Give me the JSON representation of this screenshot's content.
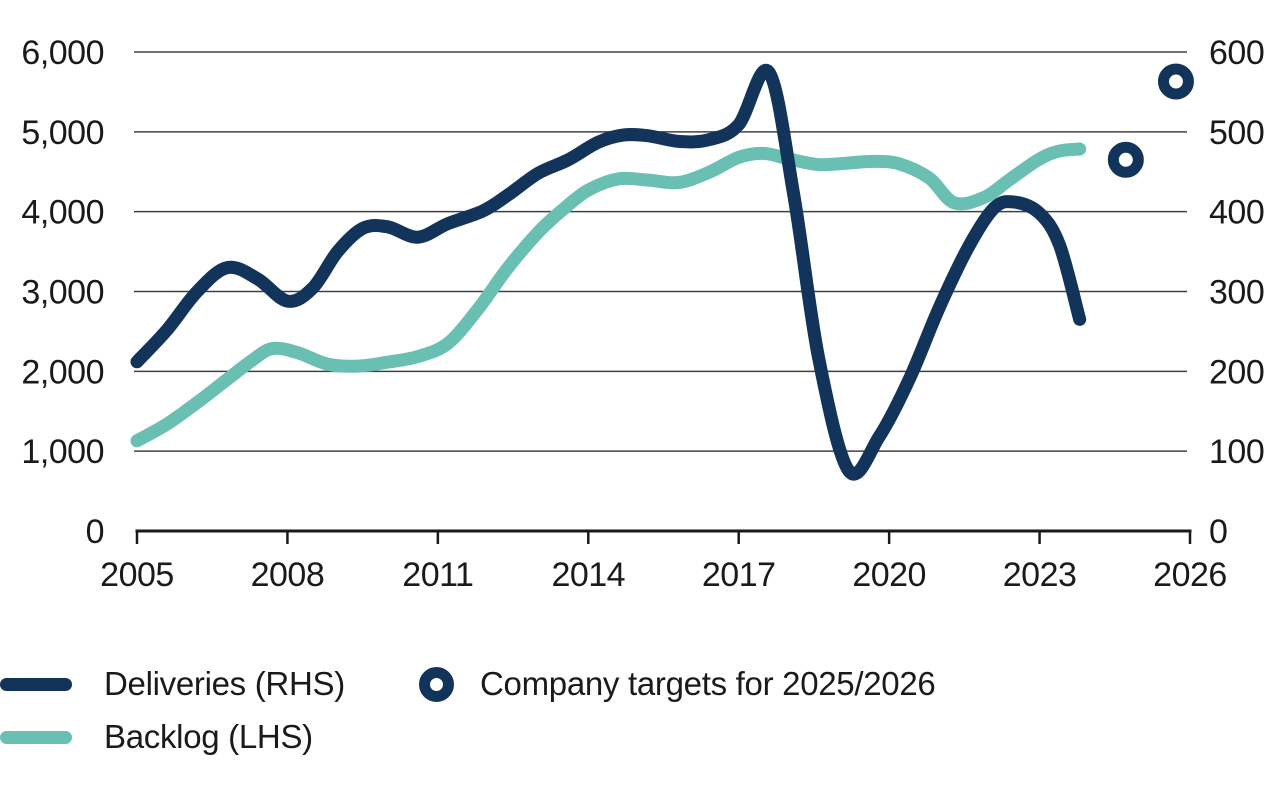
{
  "chart_data": {
    "type": "line",
    "title": "",
    "grid": true,
    "legend_position": "bottom-left",
    "x_axis": {
      "tick_years": [
        2005,
        2008,
        2011,
        2014,
        2017,
        2020,
        2023,
        2026
      ],
      "range": [
        2005,
        2026
      ]
    },
    "left_axis": {
      "range": [
        0,
        6000
      ],
      "ticks": [
        {
          "label": "6,000",
          "value": 6000
        },
        {
          "label": "5,000",
          "value": 5000
        },
        {
          "label": "4,000",
          "value": 4000
        },
        {
          "label": "3,000",
          "value": 3000
        },
        {
          "label": "2,000",
          "value": 2000
        },
        {
          "label": "1,000",
          "value": 1000
        },
        {
          "label": "0",
          "value": 0
        }
      ]
    },
    "right_axis": {
      "range": [
        0,
        600
      ],
      "ticks": [
        {
          "label": "600",
          "value": 600
        },
        {
          "label": "500",
          "value": 500
        },
        {
          "label": "400",
          "value": 400
        },
        {
          "label": "300",
          "value": 300
        },
        {
          "label": "200",
          "value": 200
        },
        {
          "label": "100",
          "value": 100
        },
        {
          "label": "0",
          "value": 0
        }
      ]
    },
    "series": [
      {
        "name": "Deliveries (RHS)",
        "axis": "right",
        "color": "#12335a",
        "points": [
          [
            2005.0,
            212
          ],
          [
            2005.6,
            252
          ],
          [
            2006.2,
            300
          ],
          [
            2006.8,
            330
          ],
          [
            2007.4,
            316
          ],
          [
            2008.0,
            288
          ],
          [
            2008.5,
            304
          ],
          [
            2009.0,
            350
          ],
          [
            2009.5,
            379
          ],
          [
            2010.0,
            381
          ],
          [
            2010.6,
            368
          ],
          [
            2011.2,
            385
          ],
          [
            2011.9,
            401
          ],
          [
            2012.4,
            421
          ],
          [
            2013.0,
            448
          ],
          [
            2013.6,
            465
          ],
          [
            2014.2,
            487
          ],
          [
            2014.7,
            496
          ],
          [
            2015.2,
            495
          ],
          [
            2015.8,
            488
          ],
          [
            2016.4,
            490
          ],
          [
            2017.0,
            509
          ],
          [
            2017.6,
            575
          ],
          [
            2018.1,
            420
          ],
          [
            2018.6,
            215
          ],
          [
            2019.2,
            75
          ],
          [
            2019.8,
            118
          ],
          [
            2020.4,
            190
          ],
          [
            2021.0,
            280
          ],
          [
            2021.6,
            358
          ],
          [
            2022.1,
            405
          ],
          [
            2022.5,
            412
          ],
          [
            2023.0,
            398
          ],
          [
            2023.4,
            358
          ],
          [
            2023.8,
            265
          ]
        ]
      },
      {
        "name": "Backlog (LHS)",
        "axis": "left",
        "color": "#6abfb3",
        "points": [
          [
            2005.0,
            1130
          ],
          [
            2005.6,
            1340
          ],
          [
            2006.2,
            1610
          ],
          [
            2006.8,
            1900
          ],
          [
            2007.3,
            2140
          ],
          [
            2007.7,
            2285
          ],
          [
            2008.2,
            2235
          ],
          [
            2008.8,
            2090
          ],
          [
            2009.4,
            2065
          ],
          [
            2010.0,
            2115
          ],
          [
            2010.6,
            2185
          ],
          [
            2011.2,
            2350
          ],
          [
            2011.8,
            2780
          ],
          [
            2012.4,
            3300
          ],
          [
            2013.0,
            3740
          ],
          [
            2013.5,
            4030
          ],
          [
            2014.0,
            4270
          ],
          [
            2014.6,
            4410
          ],
          [
            2015.2,
            4395
          ],
          [
            2015.8,
            4365
          ],
          [
            2016.4,
            4490
          ],
          [
            2017.0,
            4680
          ],
          [
            2017.5,
            4730
          ],
          [
            2018.0,
            4660
          ],
          [
            2018.6,
            4590
          ],
          [
            2019.2,
            4610
          ],
          [
            2019.7,
            4630
          ],
          [
            2020.2,
            4600
          ],
          [
            2020.8,
            4420
          ],
          [
            2021.3,
            4110
          ],
          [
            2021.9,
            4180
          ],
          [
            2022.4,
            4400
          ],
          [
            2023.0,
            4660
          ],
          [
            2023.4,
            4760
          ],
          [
            2023.8,
            4785
          ]
        ]
      }
    ],
    "targets": {
      "name": "Company targets for 2025/2026",
      "axis": "right",
      "color": "#12335a",
      "points": [
        [
          2025,
          465
        ],
        [
          2026,
          563
        ]
      ]
    }
  },
  "colors": {
    "navy": "#12335a",
    "teal": "#6abfb3",
    "grid": "#404040",
    "axis": "#1a1a1a",
    "text": "#1a1a1a",
    "background": "#ffffff"
  }
}
